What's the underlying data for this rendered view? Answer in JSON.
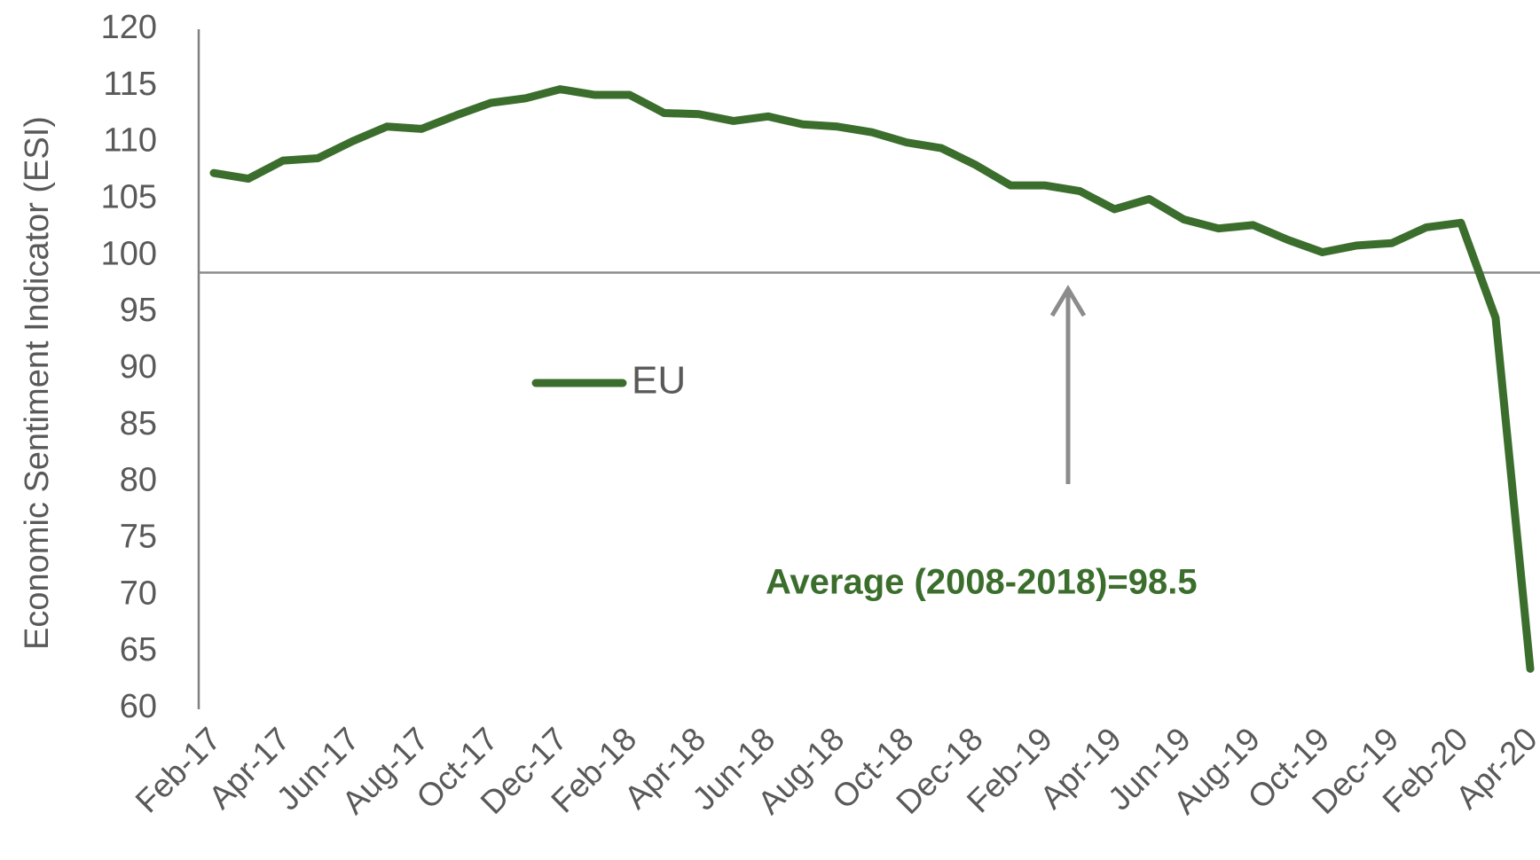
{
  "chart_data": {
    "type": "line",
    "y_label": "Economic Sentiment Indicator (ESI)",
    "categories": [
      "Feb-17",
      null,
      "Apr-17",
      null,
      "Jun-17",
      null,
      "Aug-17",
      null,
      "Oct-17",
      null,
      "Dec-17",
      null,
      "Feb-18",
      null,
      "Apr-18",
      null,
      "Jun-18",
      null,
      "Aug-18",
      null,
      "Oct-18",
      null,
      "Dec-18",
      null,
      "Feb-19",
      null,
      "Apr-19",
      null,
      "Jun-19",
      null,
      "Aug-19",
      null,
      "Oct-19",
      null,
      "Dec-19",
      null,
      "Feb-20",
      null,
      "Apr-20"
    ],
    "series": [
      {
        "name": "EU",
        "color": "#3b6e2c",
        "values": [
          107.3,
          106.8,
          108.4,
          108.6,
          110.1,
          111.4,
          111.2,
          112.4,
          113.5,
          113.9,
          114.7,
          114.2,
          114.2,
          112.6,
          112.5,
          111.9,
          112.3,
          111.6,
          111.4,
          110.9,
          110.0,
          109.5,
          108.0,
          106.2,
          106.2,
          105.7,
          104.1,
          105.0,
          103.2,
          102.4,
          102.7,
          101.4,
          100.3,
          100.9,
          101.1,
          102.5,
          102.9,
          94.5,
          63.5
        ]
      }
    ],
    "ylim": [
      60,
      120
    ],
    "yticks": [
      60,
      65,
      70,
      75,
      80,
      85,
      90,
      95,
      100,
      105,
      110,
      115,
      120
    ],
    "grid": false,
    "reference_line": 98.5,
    "annotation": "Average (2008-2018)=98.5"
  }
}
